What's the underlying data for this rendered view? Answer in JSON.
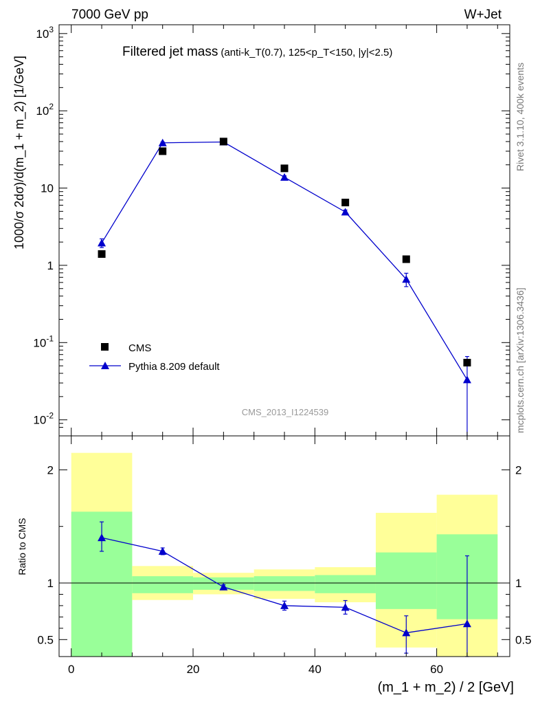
{
  "header": {
    "energy": "7000 GeV pp",
    "process": "W+Jet"
  },
  "side_labels": {
    "rivet": "Rivet 3.1.10,  400k events",
    "source": "mcplots.cern.ch [arXiv:1306.3436]"
  },
  "chart_data": [
    {
      "type": "scatter",
      "title": "Filtered jet mass",
      "subtitle": "(anti-k_T(0.7), 125<p_T<150, |y|<2.5)",
      "watermark": "CMS_2013_I1224539",
      "ylabel": "1000/σ 2dσ)/d(m_1 + m_2) [1/GeV]",
      "yscale": "log",
      "ylim": [
        0.0062,
        1300
      ],
      "xlim": [
        -2,
        72
      ],
      "ytick_labels": [
        "10^-2",
        "10^-1",
        "1",
        "10",
        "10^2",
        "10^3"
      ],
      "legend_position": "bottom-left",
      "series": [
        {
          "name": "CMS",
          "marker": "square",
          "color": "#000000",
          "x": [
            5,
            15,
            25,
            35,
            45,
            55,
            65
          ],
          "y": [
            1.4,
            30,
            40,
            18,
            6.5,
            1.2,
            0.055
          ]
        },
        {
          "name": "Pythia 8.209 default",
          "marker": "triangle",
          "line": true,
          "color": "#0000cc",
          "x": [
            5,
            15,
            25,
            35,
            45,
            55,
            65
          ],
          "y": [
            1.95,
            38.5,
            39.5,
            13.8,
            4.9,
            0.66,
            0.033
          ],
          "y_err_low": [
            0.25,
            1.0,
            1.0,
            0.6,
            0.3,
            0.13,
            0.03
          ],
          "y_err_high": [
            0.25,
            1.0,
            1.0,
            0.6,
            0.3,
            0.13,
            0.033
          ]
        }
      ]
    },
    {
      "type": "scatter",
      "ylabel": "Ratio to CMS",
      "xlabel": "(m_1 + m_2) / 2 [GeV]",
      "xlim": [
        -2,
        72
      ],
      "ylim": [
        0.35,
        2.3
      ],
      "yticks": [
        0.5,
        1,
        2
      ],
      "ytick_labels": [
        "0.5",
        "1",
        "2"
      ],
      "xticks": [
        0,
        20,
        40,
        60
      ],
      "xtick_labels": [
        "0",
        "20",
        "40",
        "60"
      ],
      "reference_line": 1,
      "bands": {
        "x_edges": [
          0,
          10,
          20,
          30,
          40,
          50,
          60,
          70
        ],
        "yellow_low": [
          0.35,
          0.85,
          0.9,
          0.86,
          0.83,
          0.43,
          0.35
        ],
        "yellow_high": [
          2.15,
          1.15,
          1.09,
          1.12,
          1.14,
          1.62,
          1.78
        ],
        "green_low": [
          0.35,
          0.91,
          0.94,
          0.93,
          0.91,
          0.77,
          0.68
        ],
        "green_high": [
          1.63,
          1.06,
          1.05,
          1.06,
          1.07,
          1.27,
          1.43
        ],
        "yellow_color": "#ffff99",
        "green_color": "#99ff99"
      },
      "series": [
        {
          "name": "Pythia 8.209 default",
          "marker": "triangle",
          "color": "#0000cc",
          "x": [
            5,
            15,
            25,
            35,
            45,
            55,
            65
          ],
          "y": [
            1.4,
            1.28,
            0.965,
            0.8,
            0.785,
            0.56,
            0.64
          ],
          "y_err_low": [
            0.12,
            0.03,
            0.02,
            0.04,
            0.06,
            0.18,
            0.3
          ],
          "y_err_high": [
            0.14,
            0.03,
            0.02,
            0.04,
            0.06,
            0.15,
            0.6
          ]
        }
      ]
    }
  ]
}
